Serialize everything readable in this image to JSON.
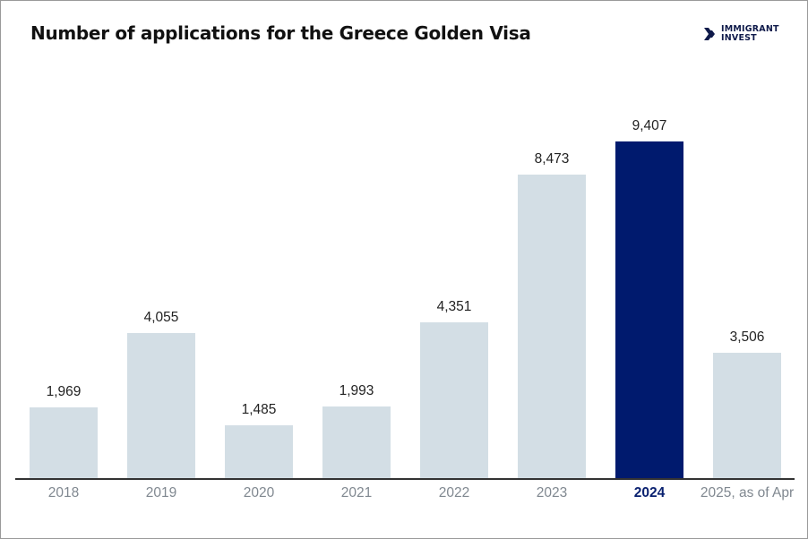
{
  "title": "Number of applications for the Greece Golden Visa",
  "logo": {
    "line1": "IMMIGRANT",
    "line2": "INVEST",
    "icon": "double-chevron-right-icon"
  },
  "colors": {
    "bar": "#d3dee5",
    "highlight": "#001a6e",
    "axis": "#333333",
    "label": "#808890"
  },
  "chart_data": {
    "type": "bar",
    "title": "Number of applications for the Greece Golden Visa",
    "xlabel": "",
    "ylabel": "",
    "categories": [
      "2018",
      "2019",
      "2020",
      "2021",
      "2022",
      "2023",
      "2024",
      "2025, as of Apr"
    ],
    "values": [
      1969,
      4055,
      1485,
      1993,
      4351,
      8473,
      9407,
      3506
    ],
    "value_labels": [
      "1,969",
      "4,055",
      "1,485",
      "1,993",
      "4,351",
      "8,473",
      "9,407",
      "3,506"
    ],
    "highlight": "2024",
    "ylim": [
      0,
      9407
    ],
    "grid": false,
    "legend": "none"
  }
}
